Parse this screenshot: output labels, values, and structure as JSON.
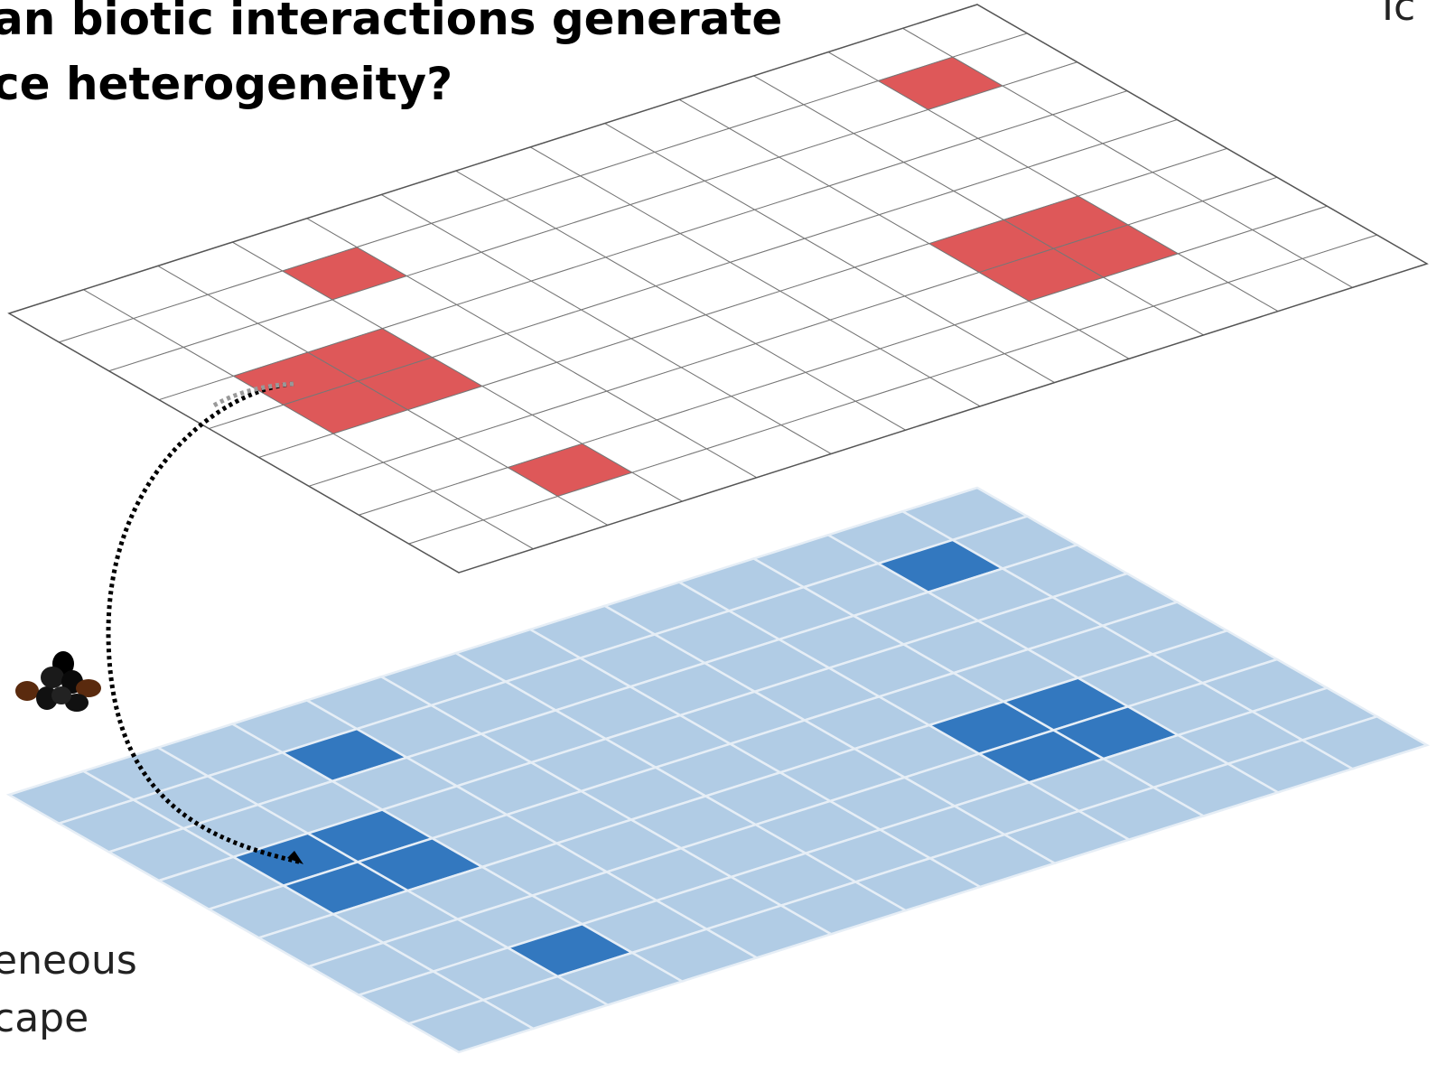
{
  "header": {
    "title_lines": [
      "an biotic interactions generate",
      "ce heterogeneity?"
    ],
    "corner_text": "Ic"
  },
  "lower_label_lines": [
    "eneous",
    "cape"
  ]
}
